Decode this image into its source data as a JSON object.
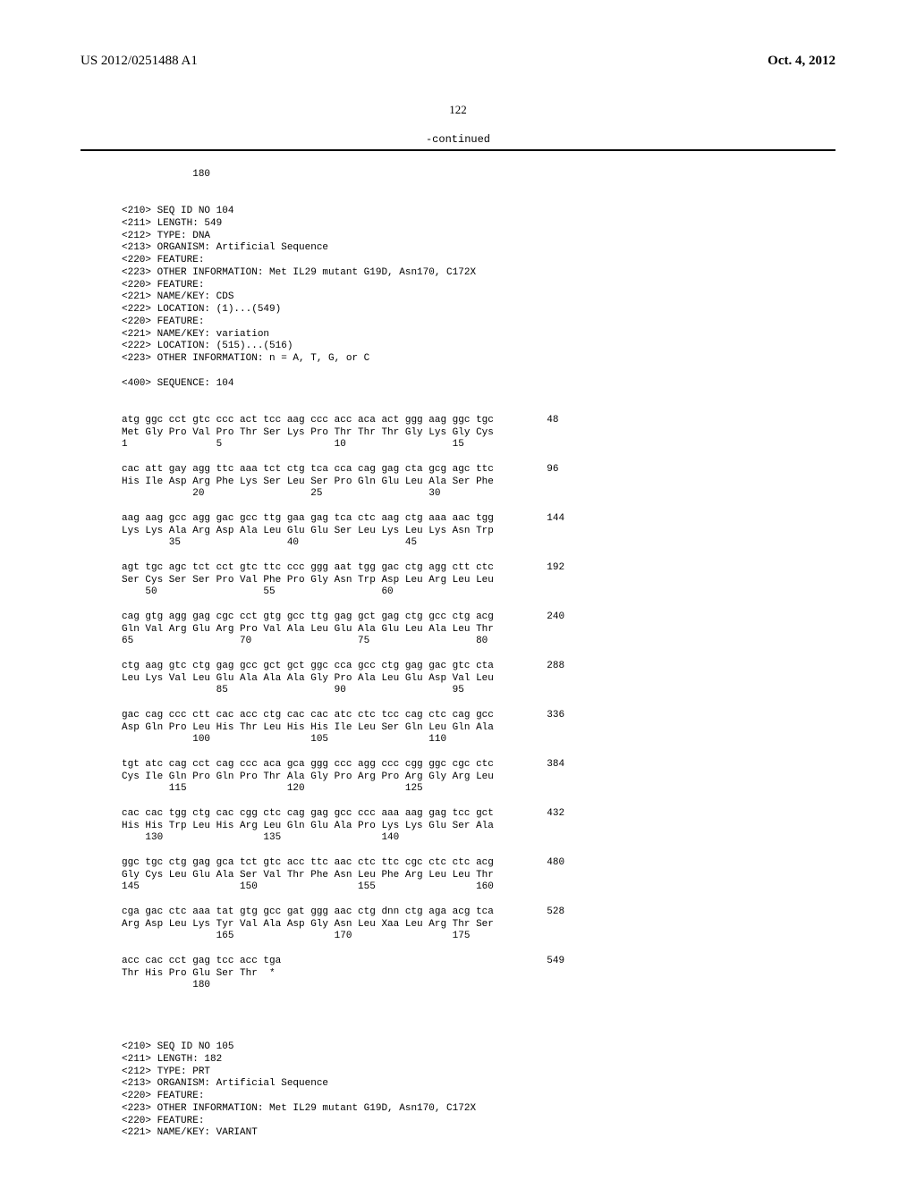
{
  "header": {
    "doc_number": "US 2012/0251488 A1",
    "doc_date": "Oct. 4, 2012",
    "page_number": "122",
    "continued": "-continued"
  },
  "top_fragment": "            180",
  "meta104": {
    "lines": [
      "<210> SEQ ID NO 104",
      "<211> LENGTH: 549",
      "<212> TYPE: DNA",
      "<213> ORGANISM: Artificial Sequence",
      "<220> FEATURE:",
      "<223> OTHER INFORMATION: Met IL29 mutant G19D, Asn170, C172X",
      "<220> FEATURE:",
      "<221> NAME/KEY: CDS",
      "<222> LOCATION: (1)...(549)",
      "<220> FEATURE:",
      "<221> NAME/KEY: variation",
      "<222> LOCATION: (515)...(516)",
      "<223> OTHER INFORMATION: n = A, T, G, or C",
      "",
      "<400> SEQUENCE: 104"
    ]
  },
  "sequence_rows": [
    {
      "codons": "atg ggc cct gtc ccc act tcc aag ccc acc aca act ggg aag ggc tgc",
      "aa": "Met Gly Pro Val Pro Thr Ser Lys Pro Thr Thr Thr Gly Lys Gly Cys",
      "pos": "1               5                   10                  15",
      "idx": "48"
    },
    {
      "codons": "cac att gay agg ttc aaa tct ctg tca cca cag gag cta gcg agc ttc",
      "aa": "His Ile Asp Arg Phe Lys Ser Leu Ser Pro Gln Glu Leu Ala Ser Phe",
      "pos": "            20                  25                  30",
      "idx": "96"
    },
    {
      "codons": "aag aag gcc agg gac gcc ttg gaa gag tca ctc aag ctg aaa aac tgg",
      "aa": "Lys Lys Ala Arg Asp Ala Leu Glu Glu Ser Leu Lys Leu Lys Asn Trp",
      "pos": "        35                  40                  45",
      "idx": "144"
    },
    {
      "codons": "agt tgc agc tct cct gtc ttc ccc ggg aat tgg gac ctg agg ctt ctc",
      "aa": "Ser Cys Ser Ser Pro Val Phe Pro Gly Asn Trp Asp Leu Arg Leu Leu",
      "pos": "    50                  55                  60",
      "idx": "192"
    },
    {
      "codons": "cag gtg agg gag cgc cct gtg gcc ttg gag gct gag ctg gcc ctg acg",
      "aa": "Gln Val Arg Glu Arg Pro Val Ala Leu Glu Ala Glu Leu Ala Leu Thr",
      "pos": "65                  70                  75                  80",
      "idx": "240"
    },
    {
      "codons": "ctg aag gtc ctg gag gcc gct gct ggc cca gcc ctg gag gac gtc cta",
      "aa": "Leu Lys Val Leu Glu Ala Ala Ala Gly Pro Ala Leu Glu Asp Val Leu",
      "pos": "                85                  90                  95",
      "idx": "288"
    },
    {
      "codons": "gac cag ccc ctt cac acc ctg cac cac atc ctc tcc cag ctc cag gcc",
      "aa": "Asp Gln Pro Leu His Thr Leu His His Ile Leu Ser Gln Leu Gln Ala",
      "pos": "            100                 105                 110",
      "idx": "336"
    },
    {
      "codons": "tgt atc cag cct cag ccc aca gca ggg ccc agg ccc cgg ggc cgc ctc",
      "aa": "Cys Ile Gln Pro Gln Pro Thr Ala Gly Pro Arg Pro Arg Gly Arg Leu",
      "pos": "        115                 120                 125",
      "idx": "384"
    },
    {
      "codons": "cac cac tgg ctg cac cgg ctc cag gag gcc ccc aaa aag gag tcc gct",
      "aa": "His His Trp Leu His Arg Leu Gln Glu Ala Pro Lys Lys Glu Ser Ala",
      "pos": "    130                 135                 140",
      "idx": "432"
    },
    {
      "codons": "ggc tgc ctg gag gca tct gtc acc ttc aac ctc ttc cgc ctc ctc acg",
      "aa": "Gly Cys Leu Glu Ala Ser Val Thr Phe Asn Leu Phe Arg Leu Leu Thr",
      "pos": "145                 150                 155                 160",
      "idx": "480"
    },
    {
      "codons": "cga gac ctc aaa tat gtg gcc gat ggg aac ctg dnn ctg aga acg tca",
      "aa": "Arg Asp Leu Lys Tyr Val Ala Asp Gly Asn Leu Xaa Leu Arg Thr Ser",
      "pos": "                165                 170                 175",
      "idx": "528"
    },
    {
      "codons": "acc cac cct gag tcc acc tga",
      "aa": "Thr His Pro Glu Ser Thr  *",
      "pos": "            180",
      "idx": "549"
    }
  ],
  "meta105": {
    "lines": [
      "<210> SEQ ID NO 105",
      "<211> LENGTH: 182",
      "<212> TYPE: PRT",
      "<213> ORGANISM: Artificial Sequence",
      "<220> FEATURE:",
      "<223> OTHER INFORMATION: Met IL29 mutant G19D, Asn170, C172X",
      "<220> FEATURE:",
      "<221> NAME/KEY: VARIANT"
    ]
  },
  "style": {
    "body_font": "Times New Roman",
    "mono_font": "Courier New",
    "text_color": "#000000",
    "background": "#ffffff",
    "rule_color": "#000000",
    "header_fontsize": 15,
    "page_num_fontsize": 13,
    "seq_fontsize": 11
  }
}
